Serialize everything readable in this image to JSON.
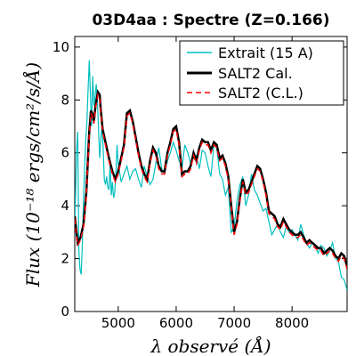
{
  "chart_data": {
    "type": "line",
    "title": "03D4aa : Spectre (Z=0.166)",
    "xlabel": "λ observé (Å)",
    "ylabel": "Flux (10⁻¹⁸ ergs/cm²/s/Å)",
    "xlim": [
      4250,
      8950
    ],
    "ylim": [
      0,
      10.4
    ],
    "xticks": [
      5000,
      6000,
      7000,
      8000
    ],
    "yticks": [
      0,
      2,
      4,
      6,
      8,
      10
    ],
    "grid": false,
    "legend_position": "top-right",
    "series": [
      {
        "name": "Extrait (15 A)",
        "color": "#00bfbf",
        "style": "solid",
        "x": [
          4250,
          4280,
          4300,
          4320,
          4340,
          4360,
          4380,
          4400,
          4420,
          4440,
          4460,
          4480,
          4500,
          4520,
          4540,
          4560,
          4580,
          4600,
          4620,
          4640,
          4660,
          4680,
          4700,
          4720,
          4740,
          4760,
          4780,
          4800,
          4820,
          4840,
          4860,
          4880,
          4900,
          4920,
          4940,
          4960,
          4980,
          5000,
          5050,
          5100,
          5150,
          5200,
          5250,
          5300,
          5350,
          5400,
          5450,
          5500,
          5550,
          5600,
          5650,
          5700,
          5750,
          5800,
          5850,
          5900,
          5950,
          6000,
          6050,
          6100,
          6150,
          6200,
          6250,
          6300,
          6350,
          6400,
          6450,
          6500,
          6550,
          6600,
          6650,
          6700,
          6750,
          6800,
          6850,
          6900,
          6950,
          7000,
          7050,
          7100,
          7150,
          7200,
          7250,
          7300,
          7350,
          7400,
          7450,
          7500,
          7550,
          7600,
          7650,
          7700,
          7750,
          7800,
          7850,
          7900,
          7950,
          8000,
          8050,
          8100,
          8150,
          8200,
          8250,
          8300,
          8350,
          8400,
          8450,
          8500,
          8550,
          8600,
          8650,
          8700,
          8750,
          8800,
          8850,
          8900,
          8950
        ],
        "y": [
          3.2,
          6.1,
          6.8,
          2.3,
          1.6,
          1.4,
          2.5,
          4.2,
          5.5,
          6.5,
          7.2,
          8.4,
          9.5,
          8.2,
          7.0,
          8.9,
          7.8,
          8.1,
          8.6,
          8.0,
          6.9,
          5.8,
          6.5,
          7.1,
          6.2,
          5.0,
          4.8,
          5.1,
          4.7,
          4.6,
          5.6,
          4.4,
          4.9,
          4.3,
          4.5,
          5.2,
          6.3,
          5.6,
          4.9,
          5.2,
          5.5,
          5.0,
          5.3,
          5.4,
          5.0,
          4.7,
          5.5,
          5.1,
          4.8,
          5.0,
          5.6,
          6.2,
          5.4,
          5.2,
          5.7,
          6.0,
          6.4,
          6.1,
          5.7,
          5.4,
          6.3,
          6.0,
          5.6,
          5.8,
          5.9,
          5.4,
          6.1,
          6.0,
          5.5,
          5.1,
          6.3,
          6.2,
          5.2,
          5.0,
          4.4,
          4.7,
          3.0,
          3.2,
          4.2,
          4.8,
          5.1,
          4.0,
          4.4,
          5.2,
          4.6,
          4.4,
          4.1,
          3.8,
          3.9,
          3.4,
          2.9,
          3.1,
          3.3,
          3.0,
          2.8,
          3.2,
          3.0,
          3.1,
          2.9,
          2.7,
          3.3,
          2.9,
          2.6,
          2.4,
          2.6,
          2.5,
          2.2,
          2.5,
          2.4,
          2.1,
          2.3,
          2.6,
          2.0,
          1.9,
          1.3,
          1.2,
          0.8
        ]
      },
      {
        "name": "SALT2 Cal.",
        "color": "#000000",
        "style": "solid",
        "x": [
          4250,
          4300,
          4350,
          4400,
          4450,
          4500,
          4530,
          4550,
          4580,
          4610,
          4650,
          4680,
          4700,
          4730,
          4760,
          4800,
          4850,
          4900,
          4950,
          5000,
          5050,
          5100,
          5150,
          5200,
          5250,
          5300,
          5350,
          5400,
          5450,
          5500,
          5550,
          5600,
          5650,
          5700,
          5750,
          5800,
          5850,
          5900,
          5950,
          6000,
          6050,
          6100,
          6150,
          6200,
          6250,
          6300,
          6350,
          6400,
          6450,
          6500,
          6550,
          6600,
          6650,
          6700,
          6750,
          6800,
          6850,
          6900,
          6950,
          7000,
          7050,
          7100,
          7150,
          7200,
          7250,
          7300,
          7350,
          7400,
          7450,
          7500,
          7550,
          7600,
          7650,
          7700,
          7750,
          7800,
          7850,
          7900,
          7950,
          8000,
          8050,
          8100,
          8150,
          8200,
          8250,
          8300,
          8350,
          8400,
          8450,
          8500,
          8550,
          8600,
          8650,
          8700,
          8750,
          8800,
          8850,
          8900,
          8950
        ],
        "y": [
          3.6,
          2.6,
          2.8,
          3.3,
          4.5,
          6.8,
          7.6,
          7.5,
          7.2,
          7.8,
          8.3,
          8.2,
          7.6,
          6.9,
          6.6,
          6.2,
          5.7,
          5.3,
          5.0,
          5.3,
          5.8,
          6.3,
          7.5,
          7.6,
          7.2,
          6.6,
          6.0,
          5.5,
          5.2,
          5.0,
          5.7,
          6.2,
          6.0,
          5.5,
          5.3,
          5.3,
          6.0,
          6.4,
          6.9,
          7.0,
          6.4,
          5.2,
          5.3,
          5.3,
          5.5,
          6.0,
          5.7,
          6.2,
          6.5,
          6.4,
          6.4,
          6.1,
          6.4,
          6.3,
          5.8,
          5.9,
          5.6,
          5.1,
          4.0,
          3.0,
          3.4,
          4.3,
          5.0,
          4.5,
          4.6,
          4.9,
          5.2,
          5.5,
          5.4,
          5.0,
          4.5,
          3.8,
          3.7,
          3.6,
          3.3,
          3.2,
          3.5,
          3.3,
          3.1,
          3.0,
          2.9,
          2.9,
          3.0,
          2.8,
          2.6,
          2.7,
          2.6,
          2.5,
          2.4,
          2.4,
          2.2,
          2.3,
          2.4,
          2.3,
          2.1,
          2.0,
          2.2,
          2.1,
          1.7
        ]
      },
      {
        "name": "SALT2 (C.L.)",
        "color": "#ff0000",
        "style": "dashed",
        "x": [
          4250,
          4300,
          4350,
          4400,
          4450,
          4500,
          4530,
          4550,
          4580,
          4610,
          4650,
          4680,
          4700,
          4730,
          4760,
          4800,
          4850,
          4900,
          4950,
          5000,
          5050,
          5100,
          5150,
          5200,
          5250,
          5300,
          5350,
          5400,
          5450,
          5500,
          5550,
          5600,
          5650,
          5700,
          5750,
          5800,
          5850,
          5900,
          5950,
          6000,
          6050,
          6100,
          6150,
          6200,
          6250,
          6300,
          6350,
          6400,
          6450,
          6500,
          6550,
          6600,
          6650,
          6700,
          6750,
          6800,
          6850,
          6900,
          6950,
          7000,
          7050,
          7100,
          7150,
          7200,
          7250,
          7300,
          7350,
          7400,
          7450,
          7500,
          7550,
          7600,
          7650,
          7700,
          7750,
          7800,
          7850,
          7900,
          7950,
          8000,
          8050,
          8100,
          8150,
          8200,
          8250,
          8300,
          8350,
          8400,
          8450,
          8500,
          8550,
          8600,
          8650,
          8700,
          8750,
          8800,
          8850,
          8900,
          8950
        ],
        "y": [
          3.5,
          2.5,
          2.7,
          3.2,
          4.4,
          6.7,
          7.5,
          7.4,
          7.1,
          7.7,
          8.2,
          8.1,
          7.5,
          6.8,
          6.5,
          6.1,
          5.6,
          5.2,
          4.9,
          5.2,
          5.7,
          6.2,
          7.4,
          7.5,
          7.1,
          6.5,
          5.9,
          5.4,
          5.1,
          4.9,
          5.6,
          6.1,
          5.9,
          5.4,
          5.2,
          5.2,
          5.9,
          6.3,
          6.8,
          6.9,
          6.3,
          5.1,
          5.2,
          5.2,
          5.4,
          5.9,
          5.6,
          6.1,
          6.4,
          6.3,
          6.3,
          6.0,
          6.3,
          6.2,
          5.7,
          5.8,
          5.5,
          5.0,
          3.9,
          2.9,
          3.3,
          4.2,
          4.9,
          4.4,
          4.5,
          4.8,
          5.1,
          5.4,
          5.3,
          4.9,
          4.4,
          3.7,
          3.6,
          3.5,
          3.2,
          3.1,
          3.4,
          3.2,
          3.0,
          2.9,
          2.8,
          2.8,
          2.9,
          2.7,
          2.5,
          2.6,
          2.5,
          2.4,
          2.3,
          2.3,
          2.1,
          2.2,
          2.3,
          2.2,
          2.0,
          1.9,
          2.1,
          2.0,
          1.6
        ]
      }
    ]
  }
}
